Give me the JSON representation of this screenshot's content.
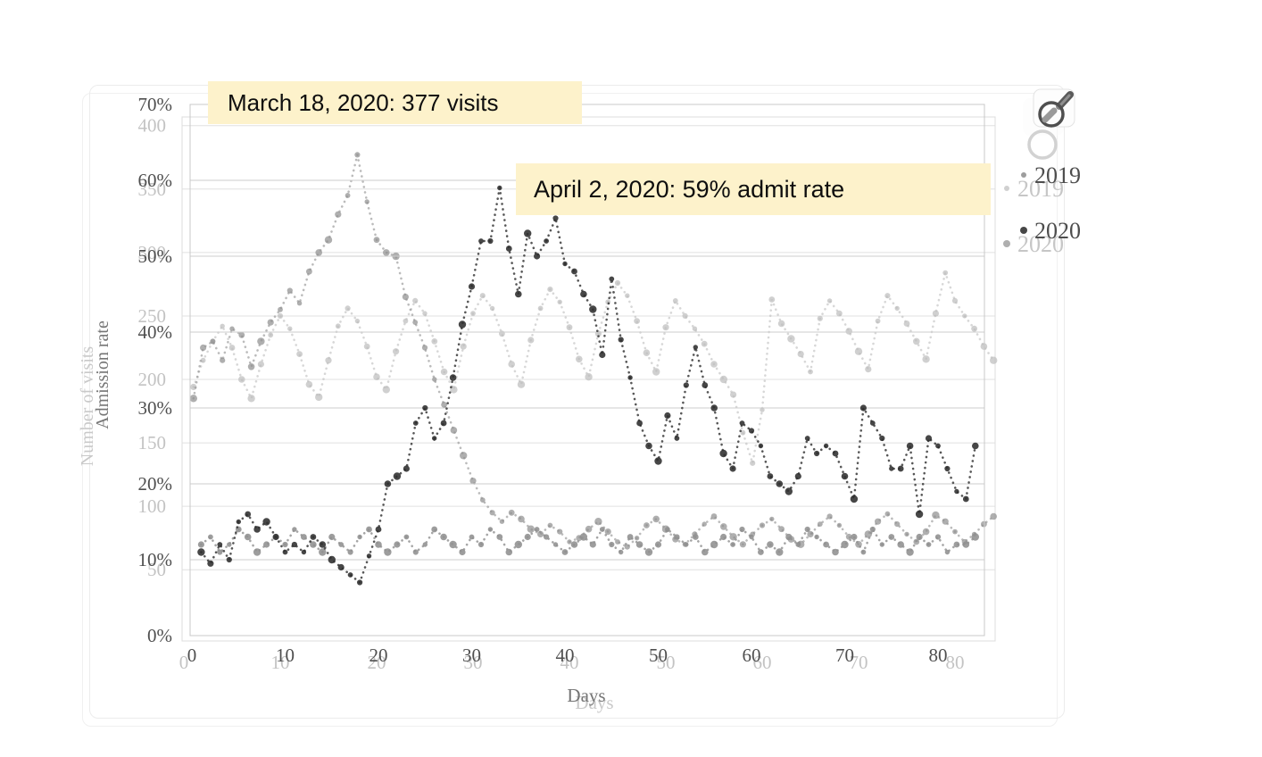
{
  "annotations": [
    {
      "id": "march",
      "text": "March 18, 2020: 377 visits"
    },
    {
      "id": "april",
      "text": "April 2, 2020: 59% admit rate"
    }
  ],
  "ui": {
    "zoom_tool_icon": "magnifier",
    "annotation_background": "#fdf2cb",
    "card_border": "#ececec"
  },
  "chart_data": [
    {
      "id": "number-of-visits",
      "type": "scatter",
      "style": "dotted-line-with-round-markers",
      "title": "",
      "xlabel": "Days",
      "ylabel": "Number of visits",
      "xlim": [
        0,
        85
      ],
      "ylim": [
        0,
        400
      ],
      "grid": true,
      "legend_position": "right",
      "x_ticks": [
        0,
        10,
        20,
        30,
        40,
        50,
        60,
        70,
        80
      ],
      "y_ticks": [
        50,
        100,
        150,
        200,
        250,
        300,
        350,
        400
      ],
      "y_tick_suffix": "",
      "x_days_start": 1,
      "series": [
        {
          "name": "2019",
          "color": "#bcbcbc",
          "values": [
            194,
            215,
            230,
            242,
            225,
            200,
            185,
            212,
            235,
            250,
            240,
            220,
            196,
            186,
            215,
            242,
            256,
            246,
            226,
            202,
            192,
            222,
            246,
            262,
            252,
            230,
            206,
            192,
            226,
            252,
            266,
            256,
            236,
            212,
            196,
            231,
            256,
            271,
            261,
            241,
            216,
            202,
            236,
            261,
            276,
            266,
            246,
            221,
            206,
            241,
            262,
            250,
            240,
            228,
            212,
            200,
            188,
            158,
            134,
            176,
            263,
            244,
            232,
            220,
            206,
            248,
            262,
            252,
            238,
            222,
            208,
            246,
            266,
            256,
            244,
            230,
            216,
            252,
            284,
            262,
            250,
            240,
            226,
            215
          ]
        },
        {
          "name": "2020",
          "color": "#8d8d8d",
          "values": [
            185,
            225,
            230,
            215,
            240,
            235,
            210,
            230,
            245,
            255,
            270,
            260,
            285,
            300,
            310,
            330,
            345,
            377,
            340,
            310,
            300,
            297,
            265,
            245,
            225,
            200,
            180,
            160,
            140,
            120,
            105,
            95,
            88,
            95,
            90,
            82,
            78,
            85,
            80,
            72,
            75,
            82,
            88,
            80,
            72,
            68,
            75,
            85,
            90,
            82,
            74,
            70,
            78,
            86,
            92,
            84,
            76,
            70,
            78,
            85,
            90,
            82,
            74,
            70,
            78,
            86,
            92,
            85,
            76,
            70,
            78,
            88,
            94,
            86,
            78,
            72,
            80,
            93,
            88,
            80,
            72,
            78,
            86,
            92
          ]
        }
      ]
    },
    {
      "id": "admission-rate",
      "type": "scatter",
      "style": "dotted-line-with-round-markers",
      "title": "",
      "xlabel": "Days",
      "ylabel": "Admission rate",
      "xlim": [
        0,
        85
      ],
      "ylim": [
        0,
        70
      ],
      "grid": true,
      "legend_position": "right",
      "x_ticks": [
        0,
        10,
        20,
        30,
        40,
        50,
        60,
        70,
        80
      ],
      "y_ticks": [
        0,
        10,
        20,
        30,
        40,
        50,
        60,
        70
      ],
      "y_tick_suffix": "%",
      "x_days_start": 1,
      "series": [
        {
          "name": "2019",
          "color": "#8f8f8f",
          "values": [
            12,
            13,
            11,
            12,
            14,
            13,
            11,
            12,
            13,
            12,
            14,
            13,
            12,
            11,
            13,
            12,
            11,
            13,
            14,
            12,
            11,
            12,
            13,
            11,
            12,
            14,
            13,
            12,
            11,
            13,
            12,
            14,
            13,
            11,
            12,
            13,
            14,
            13,
            12,
            11,
            12,
            13,
            12,
            14,
            12,
            11,
            13,
            12,
            11,
            12,
            14,
            13,
            12,
            13,
            11,
            12,
            13,
            12,
            14,
            13,
            11,
            12,
            11,
            13,
            12,
            14,
            13,
            12,
            11,
            12,
            13,
            11,
            14,
            12,
            13,
            12,
            11,
            13,
            12,
            13,
            11,
            12,
            12,
            13
          ]
        },
        {
          "name": "2020",
          "color": "#2d2d2d",
          "values": [
            11,
            9.5,
            12,
            10,
            15,
            16,
            14,
            15,
            13,
            11,
            12,
            11,
            13,
            12,
            10,
            9,
            8,
            7,
            10.5,
            14,
            20,
            21,
            22,
            28,
            30,
            26,
            28,
            34,
            41,
            46,
            52,
            52,
            59,
            51,
            45,
            53,
            50,
            52,
            55,
            49,
            48,
            45,
            43,
            37,
            47,
            39,
            34,
            28,
            25,
            23,
            29,
            26,
            33,
            38,
            33,
            30,
            24,
            22,
            28,
            27,
            25,
            21,
            20,
            19,
            21,
            26,
            24,
            25,
            24,
            21,
            18,
            30,
            28,
            26,
            22,
            22,
            25,
            16,
            26,
            25,
            22,
            19,
            18,
            25
          ]
        }
      ]
    }
  ]
}
